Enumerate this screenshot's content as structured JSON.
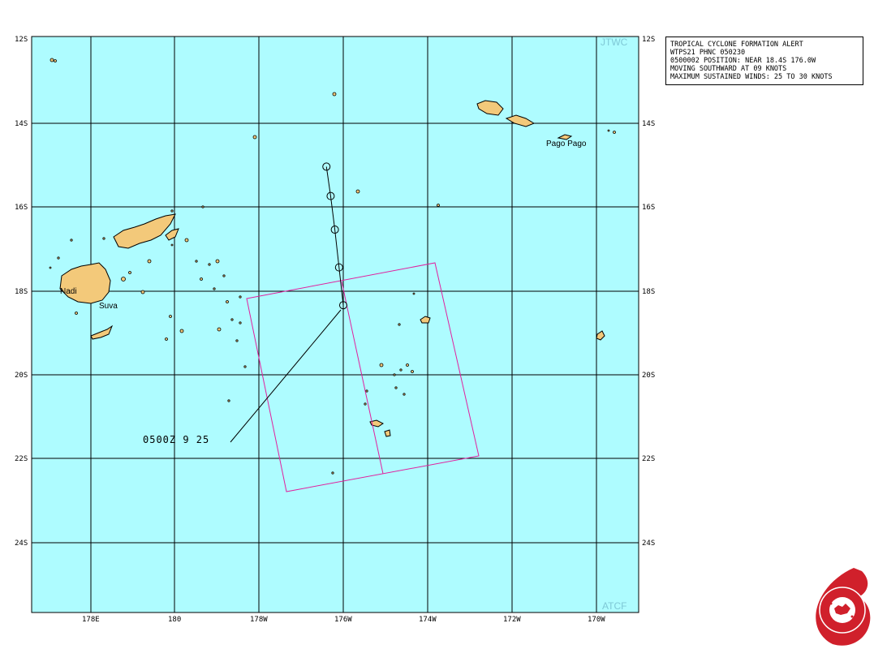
{
  "alert": {
    "line1": "TROPICAL CYCLONE FORMATION ALERT",
    "line2": "WTPS21 PHNC 050230",
    "line3": "0500002 POSITION: NEAR 18.4S 176.0W",
    "line4": "MOVING SOUTHWARD AT 09 KNOTS",
    "line5": "MAXIMUM SUSTAINED WINDS: 25 TO 30 KNOTS"
  },
  "map": {
    "lat_labels": [
      "12S",
      "14S",
      "16S",
      "18S",
      "20S",
      "22S",
      "24S"
    ],
    "lon_labels": [
      "178E",
      "180",
      "178W",
      "176W",
      "174W",
      "172W",
      "170W"
    ],
    "corner_top": "JTWC",
    "corner_bottom": "ATCF",
    "places": [
      "Nadi",
      "Suva",
      "Pago Pago"
    ],
    "callout": "0500Z  9  25"
  },
  "track": {
    "positions": [
      {
        "lat": -15.1,
        "lon": -176.4
      },
      {
        "lat": -15.8,
        "lon": -176.3
      },
      {
        "lat": -16.6,
        "lon": -176.2
      },
      {
        "lat": -17.5,
        "lon": -176.1
      },
      {
        "lat": -18.4,
        "lon": -176.0
      }
    ]
  },
  "colors": {
    "ocean": "#aefcff",
    "land": "#f3c97a",
    "grid": "#000000",
    "alert_area": "#e0219e",
    "corner_text": "#7fc8d6"
  }
}
